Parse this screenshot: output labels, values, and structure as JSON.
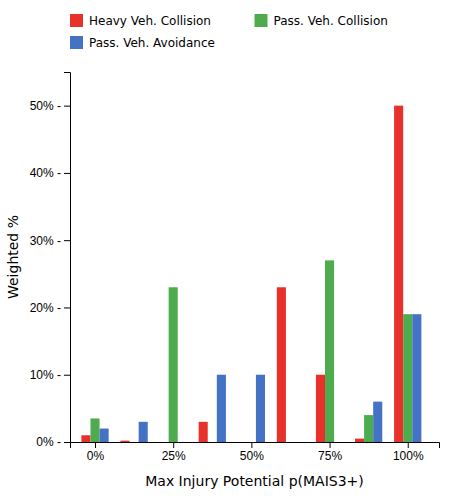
{
  "chart_data": {
    "type": "bar",
    "x": [
      0,
      0.125,
      0.25,
      0.375,
      0.5,
      0.625,
      0.75,
      0.875,
      1.0
    ],
    "series": [
      {
        "name": "Heavy Veh. Collision",
        "color": "#e8312a",
        "values": [
          1.0,
          0.2,
          0.0,
          3.0,
          0.0,
          23.0,
          10.0,
          0.5,
          50.0
        ]
      },
      {
        "name": "Pass. Veh. Collision",
        "color": "#4eac4e",
        "values": [
          3.5,
          0.0,
          23.0,
          0.0,
          0.0,
          0.0,
          27.0,
          4.0,
          19.0
        ]
      },
      {
        "name": "Pass. Veh. Avoidance",
        "color": "#4472c4",
        "values": [
          2.0,
          3.0,
          0.0,
          10.0,
          10.0,
          0.0,
          0.0,
          6.0,
          19.0
        ]
      }
    ],
    "xlabel": "Max Injury Potential p(MAIS3+)",
    "ylabel": "Weighted %",
    "xlim": [
      -0.08,
      1.1
    ],
    "xticks": [
      {
        "value": 0.0,
        "label": "0%"
      },
      {
        "value": 0.25,
        "label": "25%"
      },
      {
        "value": 0.5,
        "label": "50%"
      },
      {
        "value": 0.75,
        "label": "75%"
      },
      {
        "value": 1.0,
        "label": "100%"
      }
    ],
    "ylim": [
      0,
      55
    ],
    "yticks": [
      {
        "value": 0,
        "label": "0% -"
      },
      {
        "value": 10,
        "label": "10% -"
      },
      {
        "value": 20,
        "label": "20% -"
      },
      {
        "value": 30,
        "label": "30% -"
      },
      {
        "value": 40,
        "label": "40% -"
      },
      {
        "value": 50,
        "label": "50% -"
      }
    ],
    "grid": false,
    "legend": "top"
  }
}
